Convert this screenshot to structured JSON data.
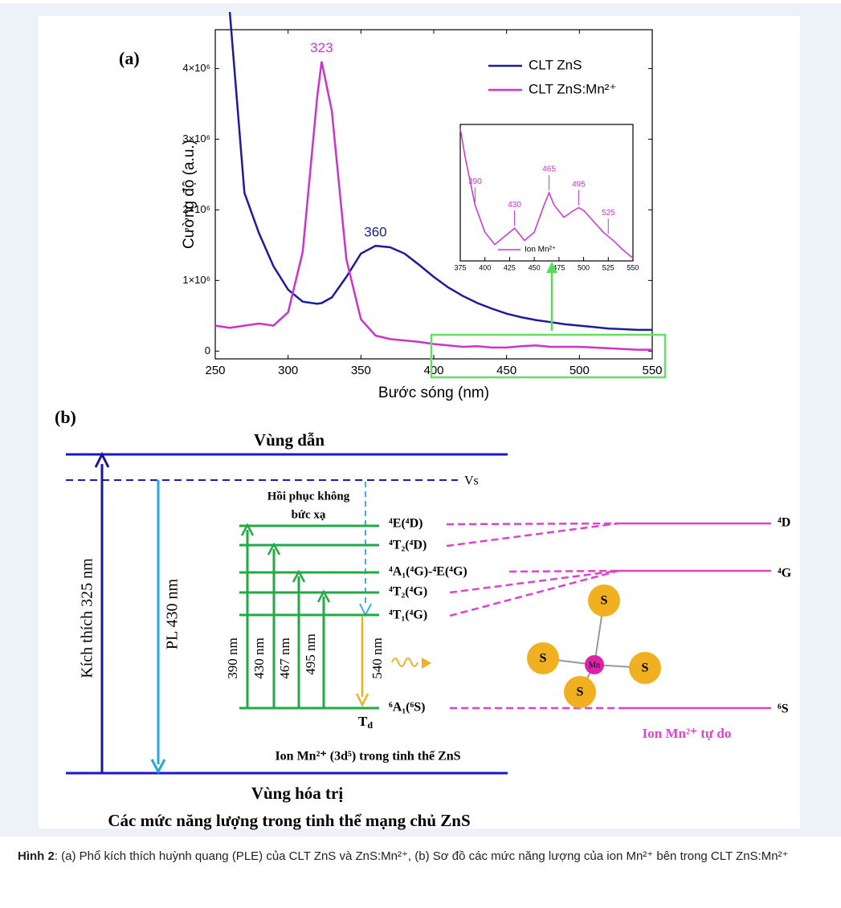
{
  "chart_data": [
    {
      "type": "line",
      "label": "(a)",
      "xlabel": "Bước sóng (nm)",
      "ylabel": "Cường độ (a.u.)",
      "x": [
        250,
        260,
        270,
        280,
        290,
        300,
        310,
        320,
        323,
        330,
        340,
        350,
        360,
        370,
        380,
        390,
        400,
        410,
        420,
        430,
        440,
        450,
        460,
        470,
        480,
        490,
        500,
        510,
        520,
        530,
        540,
        550
      ],
      "series": [
        {
          "name": "CLT ZnS",
          "color": "#1c1c9c",
          "values": [
            null,
            4800000,
            2240000,
            1670000,
            1200000,
            870000,
            700000,
            670000,
            680000,
            760000,
            1050000,
            1380000,
            1490000,
            1470000,
            1380000,
            1220000,
            1050000,
            900000,
            780000,
            680000,
            600000,
            530000,
            480000,
            440000,
            410000,
            380000,
            360000,
            340000,
            320000,
            310000,
            300000,
            300000
          ]
        },
        {
          "name": "CLT ZnS:Mn²⁺",
          "color": "#cc33cc",
          "values": [
            360000,
            330000,
            360000,
            390000,
            360000,
            550000,
            1400000,
            3600000,
            4100000,
            3400000,
            1300000,
            450000,
            220000,
            170000,
            150000,
            130000,
            100000,
            80000,
            60000,
            70000,
            50000,
            50000,
            70000,
            80000,
            60000,
            60000,
            60000,
            50000,
            40000,
            30000,
            20000,
            20000
          ]
        }
      ],
      "xlim": [
        250,
        550
      ],
      "xticks": [
        250,
        300,
        350,
        400,
        450,
        500,
        550
      ],
      "ylim": [
        -110000,
        4550000
      ],
      "yticks": [
        0,
        {
          "value": 1000000,
          "label": "1×10⁶"
        },
        {
          "value": 2000000,
          "label": "2×10⁶"
        },
        {
          "value": 3000000,
          "label": "3×10⁶"
        },
        {
          "value": 4000000,
          "label": "4×10⁶"
        }
      ],
      "annotations": [
        323,
        360
      ]
    },
    {
      "type": "line",
      "x": [
        375,
        380,
        390,
        400,
        410,
        420,
        430,
        440,
        450,
        460,
        465,
        470,
        480,
        490,
        495,
        500,
        510,
        520,
        525,
        530,
        540,
        550
      ],
      "series": [
        {
          "name": "Ion Mn²⁺",
          "color": "#cc33cc",
          "values": [
            97,
            76,
            41,
            21,
            12,
            18,
            24,
            15,
            21,
            41,
            50,
            41,
            32,
            37,
            39,
            37,
            29,
            21,
            18,
            15,
            8,
            2
          ]
        }
      ],
      "xlim": [
        375,
        550
      ],
      "xticks": [
        375,
        400,
        425,
        450,
        475,
        500,
        525,
        550
      ],
      "ylim": [
        0,
        100
      ],
      "annotations": [
        390,
        430,
        465,
        495,
        525
      ]
    }
  ],
  "diagram": {
    "label": "(b)",
    "conduction_band": "Vùng dẫn",
    "valence_band": "Vùng hóa trị",
    "host_title": "Các mức năng lượng trong tinh thể mạng chủ  ZnS",
    "vs": "Vs",
    "excitation": "Kích thích 325 nm",
    "pl": "PL 430 nm",
    "relax": [
      "Hồi phục không",
      "bức xạ"
    ],
    "levels": [
      "⁴E(⁴D)",
      "⁴T₂(⁴D)",
      "⁴A₁(⁴G)-⁴E(⁴G)",
      "⁴T₂(⁴G)",
      "⁴T₁(⁴G)",
      "⁶A₁(⁶S)"
    ],
    "transitions": [
      "390 nm",
      "430 nm",
      "467 nm",
      "495 nm",
      "540 nm"
    ],
    "td": {
      "main": "T",
      "sub": "d"
    },
    "host_ion": "Ion Mn²⁺ (3d⁵) trong tinh thể ZnS",
    "free_levels": [
      "⁴D",
      "⁴G",
      "⁶S"
    ],
    "free_ion": "Ion Mn²⁺ tự do",
    "center_atom": "Mn",
    "ligands": [
      "S",
      "S",
      "S",
      "S"
    ]
  },
  "caption": {
    "label": "Hình 2",
    "text": ": (a) Phổ kích thích huỳnh quang (PLE) của CLT ZnS và ZnS:Mn²⁺, (b) Sơ đồ các mức năng lượng của ion Mn²⁺ bên trong CLT ZnS:Mn²⁺"
  }
}
